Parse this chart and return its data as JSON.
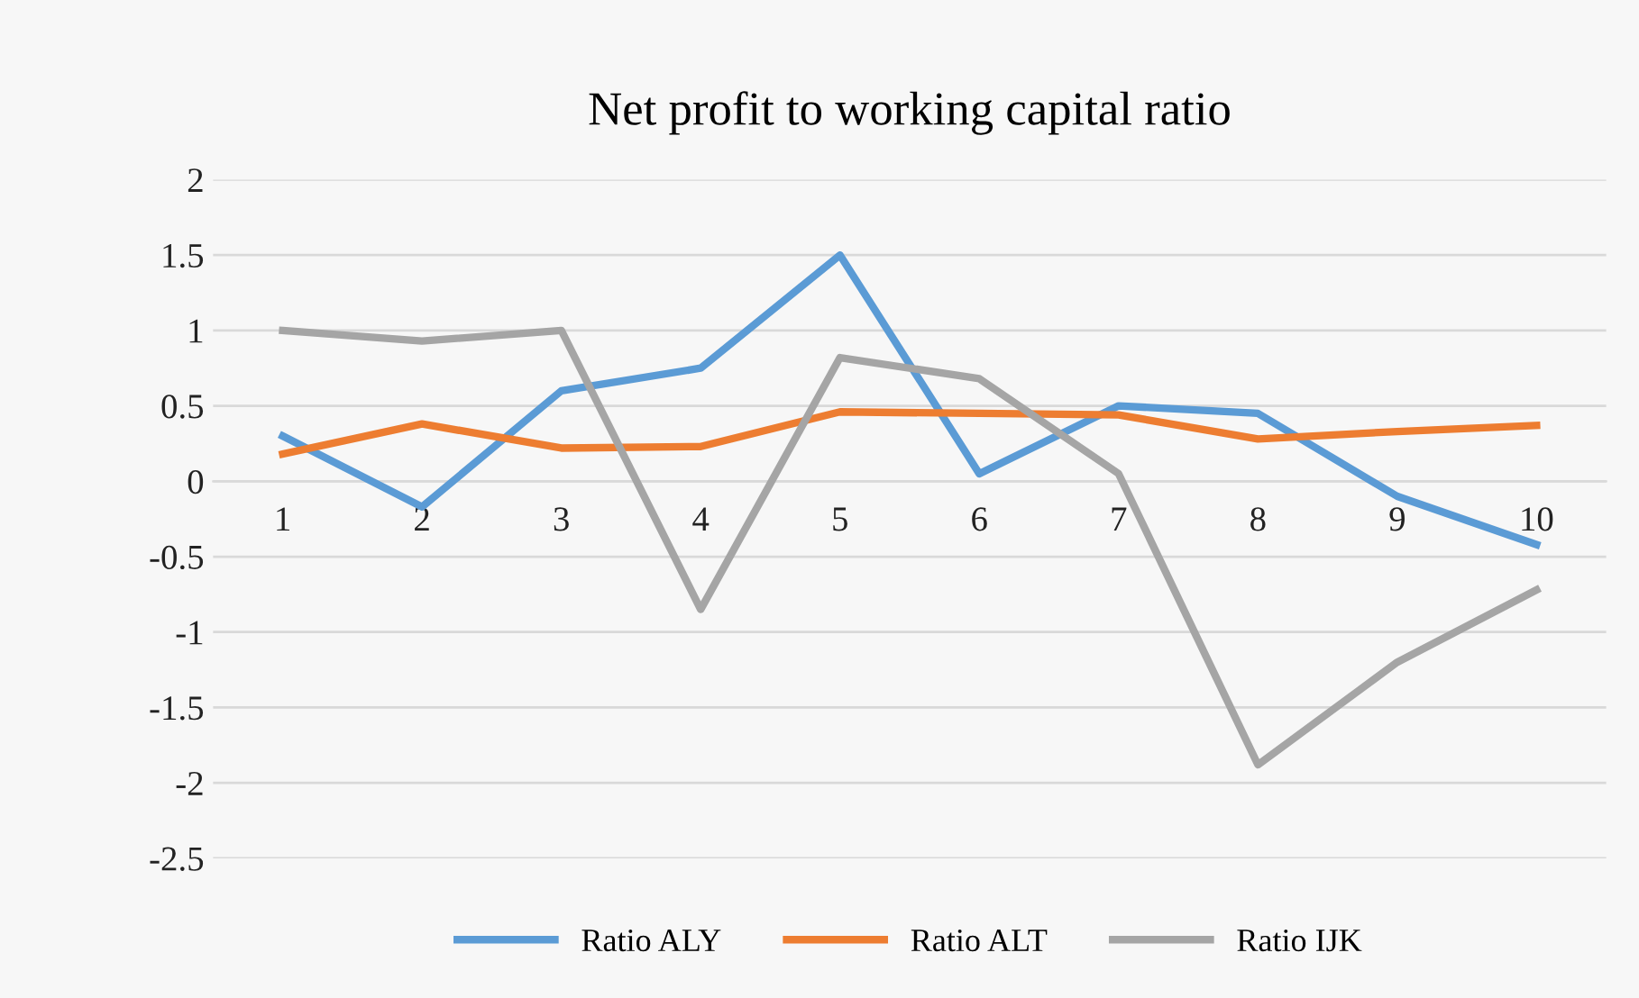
{
  "chart_data": {
    "type": "line",
    "title": "Net profit to working capital ratio",
    "categories": [
      "1",
      "2",
      "3",
      "4",
      "5",
      "6",
      "7",
      "8",
      "9",
      "10"
    ],
    "series": [
      {
        "name": "Ratio ALY",
        "color": "#5b9bd5",
        "values": [
          0.3,
          -0.17,
          0.6,
          0.75,
          1.5,
          0.05,
          0.5,
          0.45,
          -0.1,
          -0.42
        ]
      },
      {
        "name": "Ratio ALT",
        "color": "#ed7d31",
        "values": [
          0.18,
          0.38,
          0.22,
          0.23,
          0.46,
          0.45,
          0.44,
          0.28,
          0.33,
          0.37
        ]
      },
      {
        "name": "Ratio IJK",
        "color": "#a5a5a5",
        "values": [
          1.0,
          0.93,
          1.0,
          -0.85,
          0.82,
          0.68,
          0.05,
          -1.88,
          -1.2,
          -0.72
        ]
      }
    ],
    "ylim": [
      -2.5,
      2
    ],
    "yticks": [
      -2.5,
      -2,
      -1.5,
      -1,
      -0.5,
      0,
      0.5,
      1,
      1.5,
      2
    ],
    "grid": "y",
    "legend": "bottom",
    "marker": "none",
    "line_style": "solid"
  }
}
